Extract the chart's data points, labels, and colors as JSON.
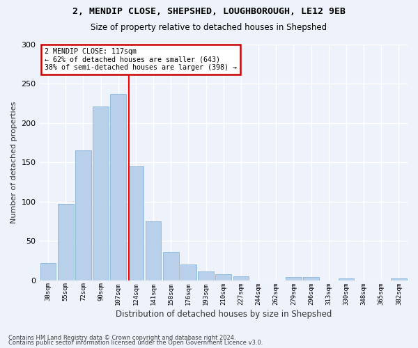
{
  "title1": "2, MENDIP CLOSE, SHEPSHED, LOUGHBOROUGH, LE12 9EB",
  "title2": "Size of property relative to detached houses in Shepshed",
  "xlabel": "Distribution of detached houses by size in Shepshed",
  "ylabel": "Number of detached properties",
  "categories": [
    "38sqm",
    "55sqm",
    "72sqm",
    "90sqm",
    "107sqm",
    "124sqm",
    "141sqm",
    "158sqm",
    "176sqm",
    "193sqm",
    "210sqm",
    "227sqm",
    "244sqm",
    "262sqm",
    "279sqm",
    "296sqm",
    "313sqm",
    "330sqm",
    "348sqm",
    "365sqm",
    "382sqm"
  ],
  "values": [
    22,
    97,
    165,
    221,
    237,
    145,
    75,
    36,
    20,
    11,
    8,
    5,
    0,
    0,
    4,
    4,
    0,
    2,
    0,
    0,
    2
  ],
  "bar_color": "#b8d0ea",
  "bar_edge_color": "#7aafd4",
  "background_color": "#eef2fb",
  "grid_color": "#ffffff",
  "ylabel_color": "#333333",
  "property_line_x": 4.6,
  "annotation_line1": "2 MENDIP CLOSE: 117sqm",
  "annotation_line2": "← 62% of detached houses are smaller (643)",
  "annotation_line3": "38% of semi-detached houses are larger (398) →",
  "annotation_box_color": "#ffffff",
  "annotation_box_edge_color": "#cc0000",
  "footer1": "Contains HM Land Registry data © Crown copyright and database right 2024.",
  "footer2": "Contains public sector information licensed under the Open Government Licence v3.0.",
  "ylim": [
    0,
    300
  ],
  "yticks": [
    0,
    50,
    100,
    150,
    200,
    250,
    300
  ],
  "title1_fontsize": 9.5,
  "title2_fontsize": 8.5
}
